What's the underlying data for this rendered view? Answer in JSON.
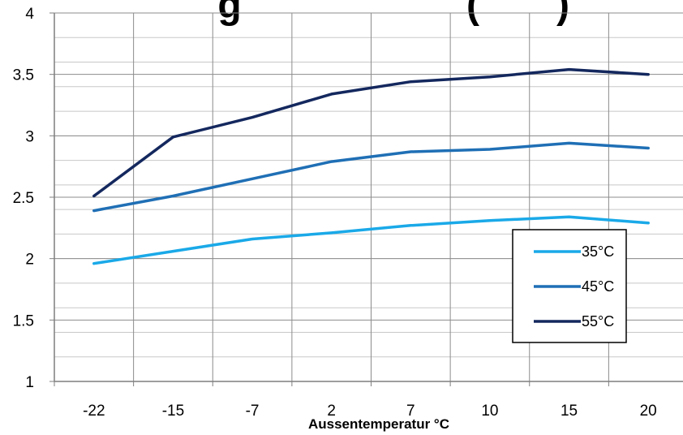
{
  "chart_data": {
    "type": "line",
    "title": "...gs... (...)",
    "title_visible_fragments": [
      "g",
      "(",
      ")"
    ],
    "xlabel": "Aussentemperatur °C",
    "ylabel": "",
    "categories": [
      "-22",
      "-15",
      "-7",
      "2",
      "7",
      "10",
      "15",
      "20"
    ],
    "ylim": [
      1,
      4
    ],
    "yticks": [
      "1",
      "1.5",
      "2",
      "2.5",
      "3",
      "3.5",
      "4"
    ],
    "grid": true,
    "legend_position": "bottom-right",
    "series": [
      {
        "name": "35°C",
        "color": "#1aa9e8",
        "values": [
          1.96,
          2.06,
          2.16,
          2.21,
          2.27,
          2.31,
          2.34,
          2.29
        ]
      },
      {
        "name": "45°C",
        "color": "#1f6fb5",
        "values": [
          2.39,
          2.51,
          2.65,
          2.79,
          2.87,
          2.89,
          2.94,
          2.9
        ]
      },
      {
        "name": "55°C",
        "color": "#14285e",
        "values": [
          2.51,
          2.99,
          3.15,
          3.34,
          3.44,
          3.48,
          3.54,
          3.5
        ]
      }
    ]
  }
}
